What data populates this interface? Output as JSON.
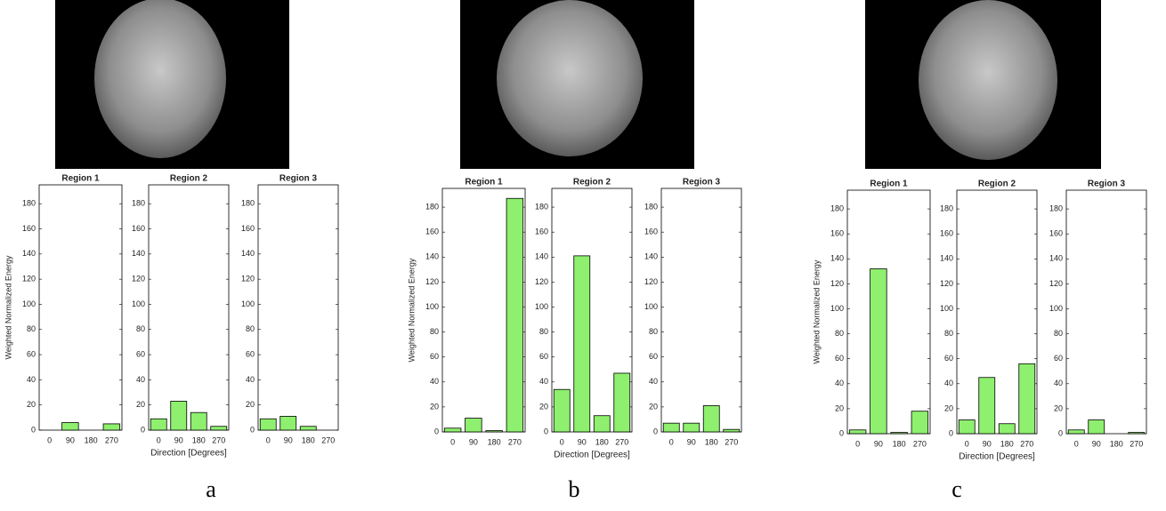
{
  "chart_data": [
    {
      "type": "bar",
      "title": "Region 1",
      "y_label": "Weighted Normalized Energy",
      "categories": [
        "0",
        "90",
        "180",
        "270"
      ],
      "values": [
        0,
        6,
        0,
        5
      ],
      "color": "#8ef06e",
      "ylim": [
        0,
        195
      ],
      "yticks": [
        0,
        20,
        40,
        60,
        80,
        100,
        120,
        140,
        160,
        180
      ]
    },
    {
      "type": "bar",
      "title": "Region 2",
      "x_label": "Direction [Degrees]",
      "categories": [
        "0",
        "90",
        "180",
        "270"
      ],
      "values": [
        9,
        23,
        14,
        3
      ],
      "color": "#8ef06e",
      "ylim": [
        0,
        195
      ],
      "yticks": [
        0,
        20,
        40,
        60,
        80,
        100,
        120,
        140,
        160,
        180
      ]
    },
    {
      "type": "bar",
      "title": "Region 3",
      "categories": [
        "0",
        "90",
        "180",
        "270"
      ],
      "values": [
        9,
        11,
        3,
        0
      ],
      "color": "#8ef06e",
      "ylim": [
        0,
        195
      ],
      "yticks": [
        0,
        20,
        40,
        60,
        80,
        100,
        120,
        140,
        160,
        180
      ]
    },
    {
      "type": "bar",
      "title": "Region 1",
      "y_label": "Weighted Normalized Energy",
      "categories": [
        "0",
        "90",
        "180",
        "270"
      ],
      "values": [
        3,
        11,
        1,
        187
      ],
      "color": "#8ef06e",
      "ylim": [
        0,
        195
      ],
      "yticks": [
        0,
        20,
        40,
        60,
        80,
        100,
        120,
        140,
        160,
        180
      ]
    },
    {
      "type": "bar",
      "title": "Region 2",
      "x_label": "Direction [Degrees]",
      "categories": [
        "0",
        "90",
        "180",
        "270"
      ],
      "values": [
        34,
        141,
        13,
        47
      ],
      "color": "#8ef06e",
      "ylim": [
        0,
        195
      ],
      "yticks": [
        0,
        20,
        40,
        60,
        80,
        100,
        120,
        140,
        160,
        180
      ]
    },
    {
      "type": "bar",
      "title": "Region 3",
      "categories": [
        "0",
        "90",
        "180",
        "270"
      ],
      "values": [
        7,
        7,
        21,
        2
      ],
      "color": "#8ef06e",
      "ylim": [
        0,
        195
      ],
      "yticks": [
        0,
        20,
        40,
        60,
        80,
        100,
        120,
        140,
        160,
        180
      ]
    },
    {
      "type": "bar",
      "title": "Region 1",
      "y_label": "Weighted Normalized Energy",
      "categories": [
        "0",
        "90",
        "180",
        "270"
      ],
      "values": [
        3,
        132,
        1,
        18
      ],
      "color": "#8ef06e",
      "ylim": [
        0,
        195
      ],
      "yticks": [
        0,
        20,
        40,
        60,
        80,
        100,
        120,
        140,
        160,
        180
      ]
    },
    {
      "type": "bar",
      "title": "Region 2",
      "x_label": "Direction [Degrees]",
      "categories": [
        "0",
        "90",
        "180",
        "270"
      ],
      "values": [
        11,
        45,
        8,
        56
      ],
      "color": "#8ef06e",
      "ylim": [
        0,
        195
      ],
      "yticks": [
        0,
        20,
        40,
        60,
        80,
        100,
        120,
        140,
        160,
        180
      ]
    },
    {
      "type": "bar",
      "title": "Region 3",
      "categories": [
        "0",
        "90",
        "180",
        "270"
      ],
      "values": [
        3,
        11,
        0,
        1
      ],
      "color": "#8ef06e",
      "ylim": [
        0,
        195
      ],
      "yticks": [
        0,
        20,
        40,
        60,
        80,
        100,
        120,
        140,
        160,
        180
      ]
    }
  ],
  "panel_labels": [
    "a",
    "b",
    "c"
  ]
}
